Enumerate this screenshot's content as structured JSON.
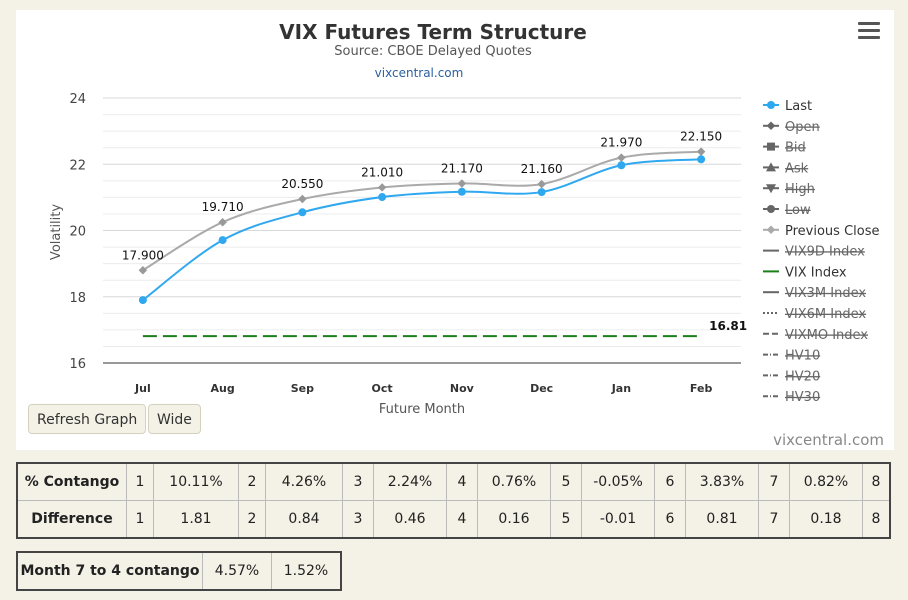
{
  "menu": {
    "icon": "hamburger-menu-icon"
  },
  "buttons": {
    "refresh": "Refresh Graph",
    "wide": "Wide"
  },
  "credit": "vixcentral.com",
  "chart_data": {
    "type": "line",
    "title": "VIX Futures Term Structure",
    "subtitle": "Source: CBOE Delayed Quotes",
    "source_link": "vixcentral.com",
    "xlabel": "Future Month",
    "ylabel": "Volatility",
    "categories": [
      "Jul",
      "Aug",
      "Sep",
      "Oct",
      "Nov",
      "Dec",
      "Jan",
      "Feb"
    ],
    "ylim": [
      16,
      24
    ],
    "yticks": [
      16,
      18,
      20,
      22,
      24
    ],
    "grid": true,
    "legend_position": "right",
    "series": [
      {
        "name": "Last",
        "values": [
          17.9,
          19.71,
          20.55,
          21.01,
          21.17,
          21.16,
          21.97,
          22.15
        ],
        "labels": [
          "17.900",
          "19.710",
          "20.550",
          "21.010",
          "21.170",
          "21.160",
          "21.970",
          "22.150"
        ],
        "color": "#2fa8f0",
        "visible": true
      },
      {
        "name": "Previous Close",
        "values": [
          18.8,
          20.25,
          20.95,
          21.3,
          21.42,
          21.4,
          22.2,
          22.38
        ],
        "color": "#aaaaaa",
        "visible": true
      },
      {
        "name": "VIX Index",
        "values": [
          16.81,
          16.81,
          16.81,
          16.81,
          16.81,
          16.81,
          16.81,
          16.81
        ],
        "end_label": "16.81",
        "color": "#1a7f1a",
        "visible": true
      }
    ],
    "legend": [
      {
        "name": "Last",
        "symbol": "circle",
        "color": "#2fa8f0",
        "active": true
      },
      {
        "name": "Open",
        "symbol": "diamond",
        "color": "#666",
        "active": false
      },
      {
        "name": "Bid",
        "symbol": "square",
        "color": "#666",
        "active": false
      },
      {
        "name": "Ask",
        "symbol": "triangle",
        "color": "#666",
        "active": false
      },
      {
        "name": "High",
        "symbol": "triangle-down",
        "color": "#666",
        "active": false
      },
      {
        "name": "Low",
        "symbol": "circle",
        "color": "#666",
        "active": false
      },
      {
        "name": "Previous Close",
        "symbol": "diamond",
        "color": "#aaaaaa",
        "active": true
      },
      {
        "name": "VIX9D Index",
        "symbol": "line",
        "color": "#666",
        "active": false
      },
      {
        "name": "VIX Index",
        "symbol": "line",
        "color": "#1a7f1a",
        "active": true
      },
      {
        "name": "VIX3M Index",
        "symbol": "line",
        "color": "#666",
        "active": false
      },
      {
        "name": "VIX6M Index",
        "symbol": "dotted",
        "color": "#666",
        "active": false
      },
      {
        "name": "VIXMO Index",
        "symbol": "dashed",
        "color": "#666",
        "active": false
      },
      {
        "name": "HV10",
        "symbol": "dashdot",
        "color": "#666",
        "active": false
      },
      {
        "name": "HV20",
        "symbol": "dashdot",
        "color": "#666",
        "active": false
      },
      {
        "name": "HV30",
        "symbol": "dashdot",
        "color": "#666",
        "active": false
      }
    ]
  },
  "contango_table": {
    "rows": [
      {
        "label": "% Contango",
        "cells": [
          "1",
          "10.11%",
          "2",
          "4.26%",
          "3",
          "2.24%",
          "4",
          "0.76%",
          "5",
          "-0.05%",
          "6",
          "3.83%",
          "7",
          "0.82%",
          "8"
        ]
      },
      {
        "label": "Difference",
        "cells": [
          "1",
          "1.81",
          "2",
          "0.84",
          "3",
          "0.46",
          "4",
          "0.16",
          "5",
          "-0.01",
          "6",
          "0.81",
          "7",
          "0.18",
          "8"
        ]
      }
    ]
  },
  "month_table": {
    "label": "Month 7 to 4 contango",
    "values": [
      "4.57%",
      "1.52%"
    ]
  }
}
